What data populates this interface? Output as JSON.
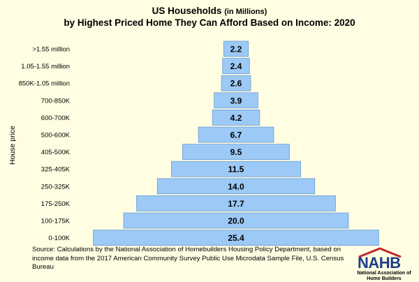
{
  "title": {
    "main": "US Households",
    "main_suffix": "(in Millions)",
    "subtitle": "by Highest Priced Home They Can Afford Based on Income: 2020"
  },
  "chart_data": {
    "type": "bar",
    "orientation": "horizontal",
    "ylabel": "House price",
    "categories": [
      "0-100K",
      "100-175K",
      "175-250K",
      "250-325K",
      "325-405K",
      "405-500K",
      "500-600K",
      "600-700K",
      "700-850K",
      "850K-1.05 million",
      "1.05-1.55 million",
      ">1.55 million"
    ],
    "values": [
      25.4,
      20.0,
      17.7,
      14.0,
      11.5,
      9.5,
      6.7,
      4.2,
      3.9,
      2.6,
      2.4,
      2.2
    ],
    "value_labels": [
      "25.4",
      "20.0",
      "17.7",
      "14.0",
      "11.5",
      "9.5",
      "6.7",
      "4.2",
      "3.9",
      "2.6",
      "2.4",
      "2.2"
    ],
    "bars_centered": true,
    "bar_color": "#9cc9f5",
    "bar_edge_color": "#6d9fd6"
  },
  "source": "Source: Calculations by the National Association of Homebuilders Housing Policy Department, based on income data from the 2017 American Community Survey Public Use Microdata Sample File, U.S. Census Bureau",
  "logo": {
    "word": "NAHB",
    "word_letters": [
      "N",
      "A",
      "H",
      "B"
    ],
    "subtext": "National Association of Home Builders",
    "colors": {
      "text": "#1f3c88",
      "roof": "#c0272d"
    }
  },
  "colors": {
    "background": "#fffde2"
  }
}
